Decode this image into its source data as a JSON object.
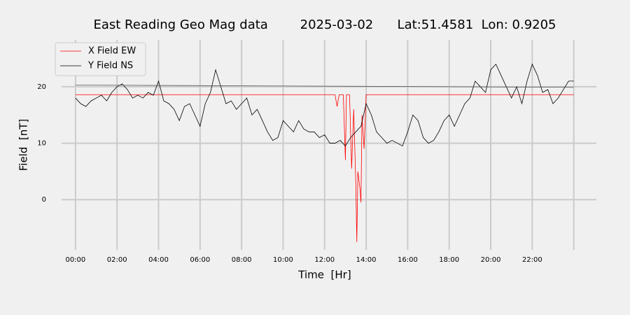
{
  "chart_data": {
    "type": "line",
    "title": "East Reading Geo Mag data        2025-03-02      Lat:51.4581  Lon: 0.9205",
    "x_label": "Time  [Hr]",
    "y_label": "Field  [nT]",
    "xlim": [
      -0.67,
      25.09
    ],
    "ylim": [
      -8.9,
      28.3
    ],
    "xticks": [
      {
        "value": 0,
        "label": "00:00"
      },
      {
        "value": 2,
        "label": "02:00"
      },
      {
        "value": 4,
        "label": "04:00"
      },
      {
        "value": 6,
        "label": "06:00"
      },
      {
        "value": 8,
        "label": "08:00"
      },
      {
        "value": 10,
        "label": "10:00"
      },
      {
        "value": 12,
        "label": "12:00"
      },
      {
        "value": 14,
        "label": "14:00"
      },
      {
        "value": 16,
        "label": "16:00"
      },
      {
        "value": 18,
        "label": "18:00"
      },
      {
        "value": 20,
        "label": "20:00"
      },
      {
        "value": 22,
        "label": "22:00"
      },
      {
        "value": 24
      }
    ],
    "yticks": [
      0,
      10,
      20
    ],
    "grid": true,
    "legend": "upper left",
    "series": [
      {
        "name": "X Field EW",
        "color": "#ff0000",
        "x": [
          0,
          12.5,
          12.6,
          12.7,
          12.9,
          13.0,
          13.05,
          13.2,
          13.3,
          13.4,
          13.5,
          13.55,
          13.6,
          13.7,
          13.75,
          13.8,
          13.9,
          14.0,
          24
        ],
        "values": [
          18.6,
          18.6,
          16.5,
          18.6,
          18.6,
          7,
          18.6,
          18.6,
          5.5,
          16,
          3,
          -7.5,
          5,
          2,
          -0.5,
          15,
          9,
          18.6,
          18.6
        ]
      },
      {
        "name": "Y Field NS",
        "color": "#000000",
        "x": [
          0,
          0.25,
          0.5,
          0.75,
          1,
          1.25,
          1.5,
          1.75,
          2,
          2.25,
          2.5,
          2.75,
          3,
          3.25,
          3.5,
          3.75,
          4,
          4.25,
          4.5,
          4.75,
          5,
          5.25,
          5.5,
          5.75,
          6,
          6.25,
          6.5,
          6.75,
          7,
          7.25,
          7.5,
          7.75,
          8,
          8.25,
          8.5,
          8.75,
          9,
          9.25,
          9.5,
          9.75,
          10,
          10.25,
          10.5,
          10.75,
          11,
          11.25,
          11.5,
          11.75,
          12,
          12.25,
          12.5,
          12.75,
          13,
          13.25,
          13.5,
          13.75,
          14,
          14.25,
          14.5,
          14.75,
          15,
          15.25,
          15.5,
          15.75,
          16,
          16.25,
          16.5,
          16.75,
          17,
          17.25,
          17.5,
          17.75,
          18,
          18.25,
          18.5,
          18.75,
          19,
          19.25,
          19.5,
          19.75,
          20,
          20.25,
          20.5,
          20.75,
          21,
          21.25,
          21.5,
          21.75,
          22,
          22.25,
          22.5,
          22.75,
          23,
          23.25,
          23.5,
          23.75,
          24
        ],
        "values": [
          18,
          17,
          16.5,
          17.5,
          18,
          18.5,
          17.5,
          19,
          20,
          20.5,
          19.5,
          18,
          18.5,
          18,
          19,
          18.5,
          21,
          17.5,
          17,
          16,
          14,
          16.5,
          17,
          15,
          13,
          17,
          19,
          23,
          20,
          17,
          17.5,
          16,
          17,
          18,
          15,
          16,
          14,
          12,
          10.5,
          11,
          14,
          13,
          12,
          14,
          12.5,
          12,
          12,
          11,
          11.5,
          10,
          10,
          10.5,
          9.5,
          11,
          12,
          13,
          17,
          15,
          12,
          11,
          10,
          10.5,
          10,
          9.5,
          12,
          15,
          14,
          11,
          10,
          10.5,
          12,
          14,
          15,
          13,
          15,
          17,
          18,
          21,
          20,
          19,
          23,
          24,
          22,
          20,
          18,
          20,
          17,
          21,
          24,
          22,
          19,
          19.5,
          17,
          18,
          19.5,
          21,
          21
        ]
      },
      {
        "color": "#555555",
        "x": [
          0,
          24
        ],
        "values": [
          20.3,
          19.9
        ]
      }
    ]
  }
}
